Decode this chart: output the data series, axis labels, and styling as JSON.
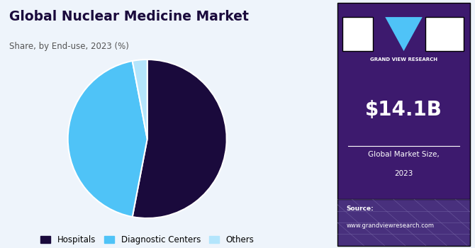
{
  "title": "Global Nuclear Medicine Market",
  "subtitle": "Share, by End-use, 2023 (%)",
  "slices": [
    53,
    44,
    3
  ],
  "labels": [
    "Hospitals",
    "Diagnostic Centers",
    "Others"
  ],
  "colors": [
    "#1a0a3c",
    "#4fc3f7",
    "#b3e5fc"
  ],
  "legend_colors": [
    "#1a0a3c",
    "#4fc3f7",
    "#b3e5fc"
  ],
  "bg_color": "#eef4fb",
  "right_panel_color": "#3d1a6e",
  "market_size": "$14.1B",
  "market_label1": "Global Market Size,",
  "market_label2": "2023",
  "source_label": "Source:",
  "source_url": "www.grandviewresearch.com",
  "gvr_label": "GRAND VIEW RESEARCH",
  "startangle": 90,
  "title_color": "#1a0a3c",
  "subtitle_color": "#555555"
}
